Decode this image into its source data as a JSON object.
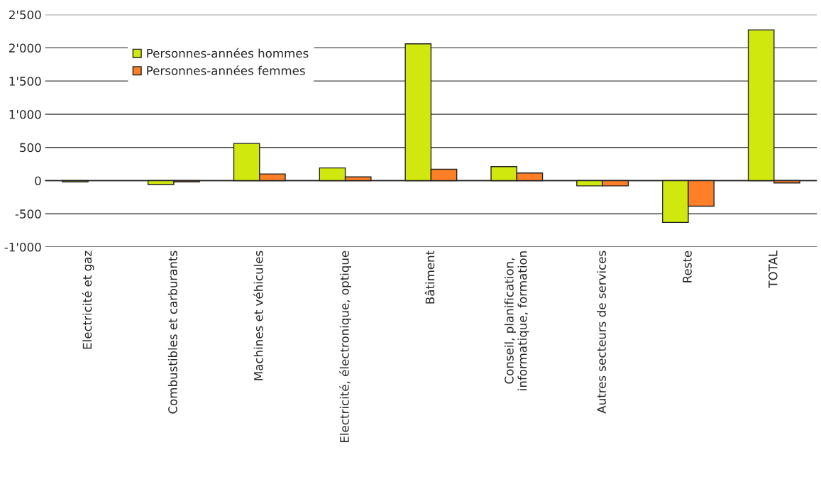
{
  "chart_data": {
    "type": "bar",
    "categories": [
      "Electricité et gaz",
      "Combustibles et carburants",
      "Machines et véhicules",
      "Electricité, électronique, optique",
      "Bâtiment",
      "Conseil, planification,\ninformatique, formation",
      "Autres secteurs de services",
      "Reste",
      "TOTAL"
    ],
    "series": [
      {
        "name": "Personnes-années hommes",
        "color": "#d0e80e",
        "values": [
          -20,
          -60,
          560,
          190,
          2060,
          210,
          -80,
          -630,
          2270
        ]
      },
      {
        "name": "Personnes-années femmes",
        "color": "#ff7f27",
        "values": [
          null,
          -20,
          100,
          55,
          170,
          115,
          -80,
          -385,
          -35
        ]
      }
    ],
    "ylim": [
      -1000,
      2500
    ],
    "yticks": [
      {
        "value": -1000,
        "label": "-1'000"
      },
      {
        "value": -500,
        "label": "-500"
      },
      0,
      500,
      {
        "value": 1000,
        "label": "1'000"
      },
      {
        "value": 1500,
        "label": "1'500"
      },
      {
        "value": 2000,
        "label": "2'000"
      },
      {
        "value": 2500,
        "label": "2'500"
      }
    ],
    "grid": "y",
    "legend": "top left"
  }
}
